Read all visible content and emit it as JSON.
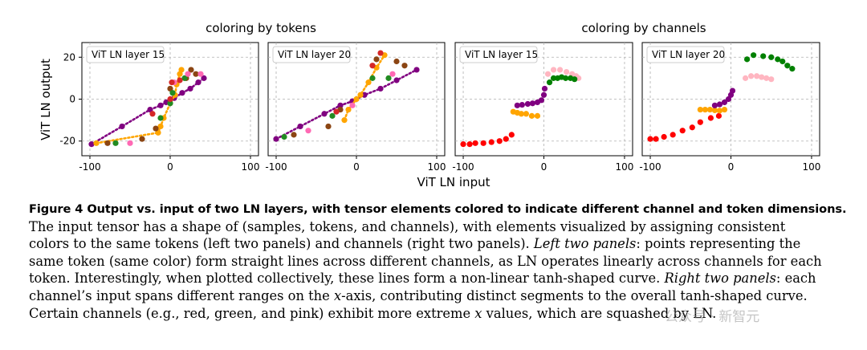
{
  "groups": {
    "left_title": "coloring by tokens",
    "right_title": "coloring by channels"
  },
  "axes": {
    "ylabel": "ViT LN output",
    "xlabel": "ViT LN input"
  },
  "chart_data": [
    {
      "type": "scatter",
      "title": "ViT LN layer 15",
      "group": "coloring by tokens",
      "xlabel": "ViT LN input",
      "ylabel": "ViT LN output",
      "xlim": [
        -110,
        110
      ],
      "ylim": [
        -27,
        27
      ],
      "xticks": [
        -100,
        0,
        100
      ],
      "yticks": [
        -20,
        0,
        20
      ],
      "grid": true,
      "series": [
        {
          "name": "token-purple",
          "color": "#800080",
          "style": "dotted-line",
          "points": [
            [
              -98,
              -21.5
            ],
            [
              -60,
              -13
            ],
            [
              -25,
              -5
            ],
            [
              -12,
              -3
            ],
            [
              -5,
              -1.5
            ],
            [
              5,
              0.5
            ],
            [
              15,
              3
            ],
            [
              25,
              5
            ],
            [
              35,
              8
            ],
            [
              42,
              10
            ]
          ]
        },
        {
          "name": "token-orange",
          "color": "#FFA500",
          "style": "dotted-line",
          "points": [
            [
              -92,
              -21
            ],
            [
              -15,
              -16
            ],
            [
              -12,
              -13
            ],
            [
              -8,
              -9
            ],
            [
              0,
              -2
            ],
            [
              6,
              2
            ],
            [
              8,
              7
            ],
            [
              12,
              12
            ],
            [
              14,
              14
            ]
          ]
        },
        {
          "name": "token-brown",
          "color": "#8B4513",
          "style": "points",
          "points": [
            [
              -78,
              -21
            ],
            [
              -35,
              -19
            ],
            [
              -18,
              -14
            ],
            [
              0,
              5
            ],
            [
              20,
              10
            ],
            [
              26,
              14
            ],
            [
              32,
              12
            ]
          ]
        },
        {
          "name": "token-green",
          "color": "#228B22",
          "style": "points",
          "points": [
            [
              -68,
              -21
            ],
            [
              -12,
              -9
            ],
            [
              0,
              -2
            ],
            [
              3,
              3
            ],
            [
              18,
              10
            ]
          ]
        },
        {
          "name": "token-pink",
          "color": "#FF69B4",
          "style": "points",
          "points": [
            [
              -50,
              -21
            ],
            [
              5,
              8
            ],
            [
              22,
              12
            ],
            [
              38,
              12
            ]
          ]
        },
        {
          "name": "token-red",
          "color": "#D62728",
          "style": "points",
          "points": [
            [
              -22,
              -7
            ],
            [
              0,
              0
            ],
            [
              2,
              8
            ],
            [
              12,
              9
            ]
          ]
        }
      ]
    },
    {
      "type": "scatter",
      "title": "ViT LN layer 20",
      "group": "coloring by tokens",
      "xlabel": "ViT LN input",
      "ylabel": "ViT LN output",
      "xlim": [
        -110,
        110
      ],
      "ylim": [
        -27,
        27
      ],
      "xticks": [
        -100,
        0,
        100
      ],
      "yticks": [
        -20,
        0,
        20
      ],
      "grid": true,
      "series": [
        {
          "name": "token-purple",
          "color": "#800080",
          "style": "dotted-line",
          "points": [
            [
              -100,
              -19
            ],
            [
              -70,
              -13
            ],
            [
              -40,
              -7
            ],
            [
              -20,
              -3
            ],
            [
              -5,
              -1
            ],
            [
              10,
              2
            ],
            [
              30,
              5
            ],
            [
              50,
              9
            ],
            [
              75,
              14
            ]
          ]
        },
        {
          "name": "token-orange",
          "color": "#FFA500",
          "style": "dotted-line",
          "points": [
            [
              -15,
              -10
            ],
            [
              -10,
              -5
            ],
            [
              0,
              0
            ],
            [
              5,
              2
            ],
            [
              15,
              8
            ],
            [
              25,
              15
            ],
            [
              35,
              21
            ]
          ]
        },
        {
          "name": "token-brown",
          "color": "#8B4513",
          "style": "points",
          "points": [
            [
              -78,
              -17
            ],
            [
              -35,
              -13
            ],
            [
              -20,
              -5
            ],
            [
              25,
              19
            ],
            [
              50,
              18
            ],
            [
              60,
              16
            ]
          ]
        },
        {
          "name": "token-green",
          "color": "#228B22",
          "style": "points",
          "points": [
            [
              -90,
              -18
            ],
            [
              -30,
              -8
            ],
            [
              20,
              10
            ],
            [
              40,
              10
            ]
          ]
        },
        {
          "name": "token-pink",
          "color": "#FF69B4",
          "style": "points",
          "points": [
            [
              -60,
              -15
            ],
            [
              -5,
              -3
            ],
            [
              45,
              12
            ]
          ]
        },
        {
          "name": "token-red",
          "color": "#D62728",
          "style": "points",
          "points": [
            [
              -25,
              -6
            ],
            [
              20,
              16
            ],
            [
              30,
              22
            ]
          ]
        }
      ]
    },
    {
      "type": "scatter",
      "title": "ViT LN layer 15",
      "group": "coloring by channels",
      "xlabel": "ViT LN input",
      "ylabel": "ViT LN output",
      "xlim": [
        -110,
        110
      ],
      "ylim": [
        -27,
        27
      ],
      "xticks": [
        -100,
        0,
        100
      ],
      "yticks": [
        -20,
        0,
        20
      ],
      "grid": true,
      "series": [
        {
          "name": "channel-red",
          "color": "#FF0000",
          "style": "points",
          "points": [
            [
              -100,
              -21.5
            ],
            [
              -92,
              -21.5
            ],
            [
              -85,
              -21
            ],
            [
              -75,
              -21
            ],
            [
              -65,
              -20.5
            ],
            [
              -55,
              -20
            ],
            [
              -47,
              -19
            ],
            [
              -40,
              -17
            ]
          ]
        },
        {
          "name": "channel-orange",
          "color": "#FFA500",
          "style": "points",
          "points": [
            [
              -38,
              -6
            ],
            [
              -33,
              -6.5
            ],
            [
              -28,
              -7
            ],
            [
              -22,
              -7
            ],
            [
              -15,
              -8
            ],
            [
              -8,
              -8
            ]
          ]
        },
        {
          "name": "channel-purple",
          "color": "#800080",
          "style": "points",
          "points": [
            [
              -33,
              -3
            ],
            [
              -27,
              -2.7
            ],
            [
              -20,
              -2.3
            ],
            [
              -14,
              -2
            ],
            [
              -8,
              -1.5
            ],
            [
              -3,
              -0.5
            ],
            [
              0,
              2
            ],
            [
              1,
              5
            ]
          ]
        },
        {
          "name": "channel-pink",
          "color": "#FFB6C1",
          "style": "points",
          "points": [
            [
              5,
              12
            ],
            [
              12,
              14
            ],
            [
              20,
              14
            ],
            [
              28,
              13
            ],
            [
              35,
              12
            ],
            [
              40,
              11
            ],
            [
              43,
              10
            ]
          ]
        },
        {
          "name": "channel-green",
          "color": "#008000",
          "style": "points",
          "points": [
            [
              7,
              8
            ],
            [
              12,
              10
            ],
            [
              17,
              10
            ],
            [
              22,
              10.5
            ],
            [
              27,
              10
            ],
            [
              33,
              10
            ],
            [
              38,
              9.5
            ]
          ]
        }
      ]
    },
    {
      "type": "scatter",
      "title": "ViT LN layer 20",
      "group": "coloring by channels",
      "xlabel": "ViT LN input",
      "ylabel": "ViT LN output",
      "xlim": [
        -110,
        110
      ],
      "ylim": [
        -27,
        27
      ],
      "xticks": [
        -100,
        0,
        100
      ],
      "yticks": [
        -20,
        0,
        20
      ],
      "grid": true,
      "series": [
        {
          "name": "channel-red",
          "color": "#FF0000",
          "style": "points",
          "points": [
            [
              -100,
              -19
            ],
            [
              -93,
              -19
            ],
            [
              -83,
              -18
            ],
            [
              -72,
              -17
            ],
            [
              -60,
              -15
            ],
            [
              -48,
              -13.5
            ],
            [
              -38,
              -11
            ],
            [
              -25,
              -9
            ],
            [
              -15,
              -8
            ]
          ]
        },
        {
          "name": "channel-orange",
          "color": "#FFA500",
          "style": "points",
          "points": [
            [
              -38,
              -5
            ],
            [
              -32,
              -5
            ],
            [
              -26,
              -5
            ],
            [
              -20,
              -5.3
            ],
            [
              -14,
              -5.5
            ],
            [
              -8,
              -5
            ]
          ]
        },
        {
          "name": "channel-purple",
          "color": "#800080",
          "style": "points",
          "points": [
            [
              -20,
              -3
            ],
            [
              -14,
              -2.5
            ],
            [
              -8,
              -1.5
            ],
            [
              -3,
              0
            ],
            [
              0,
              2
            ],
            [
              2,
              4
            ]
          ]
        },
        {
          "name": "channel-pink",
          "color": "#FFB6C1",
          "style": "points",
          "points": [
            [
              18,
              10
            ],
            [
              25,
              11
            ],
            [
              32,
              11
            ],
            [
              38,
              10.5
            ],
            [
              44,
              10
            ],
            [
              50,
              9.5
            ]
          ]
        },
        {
          "name": "channel-green",
          "color": "#008000",
          "style": "points",
          "points": [
            [
              20,
              19
            ],
            [
              28,
              21
            ],
            [
              40,
              20.5
            ],
            [
              50,
              20
            ],
            [
              58,
              19
            ],
            [
              64,
              18
            ],
            [
              70,
              16
            ],
            [
              76,
              14.5
            ]
          ]
        }
      ]
    }
  ],
  "caption": {
    "title": "Figure 4  Output vs. input of two LN layers, with tensor elements colored to indicate different channel and token dimensions.",
    "line1": "The input tensor has a shape of (samples, tokens, and channels), with elements visualized by assigning consistent",
    "line2": "colors to the same tokens (left two panels) and channels (right two panels).",
    "line2_em": "Left two panels",
    "line2_rest": ": points representing the",
    "line3": "same token (same color) form straight lines across different channels, as LN operates linearly across channels for each",
    "line4_a": "token. Interestingly, when plotted collectively, these lines form a non-linear tanh-shaped curve.",
    "line4_em": "Right two panels",
    "line4_b": ": each",
    "line5_a": "channel’s input spans different ranges on the",
    "line5_x": "x",
    "line5_b": "-axis, contributing distinct segments to the overall tanh-shaped curve.",
    "line6_a": "Certain channels (e.g., red, green, and pink) exhibit more extreme",
    "line6_x": "x",
    "line6_b": "values, which are squashed by LN."
  },
  "watermark": "公众号 · 新智元"
}
